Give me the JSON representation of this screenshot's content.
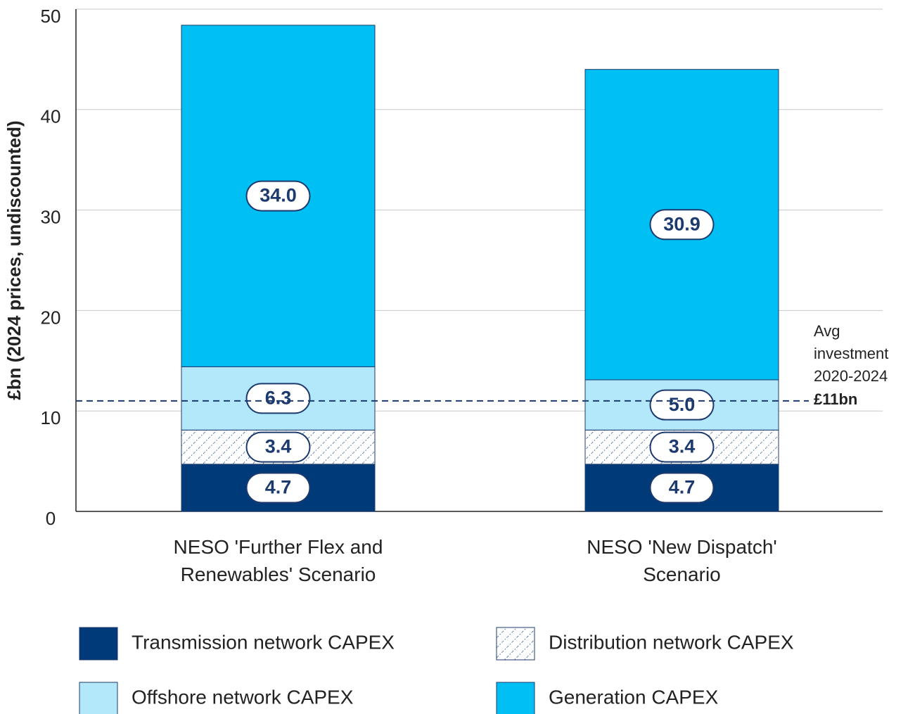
{
  "chart_data": {
    "type": "stacked_bar",
    "y_label": "£bn (2024 prices, undiscounted)",
    "categories": [
      "NESO 'Further Flex and Renewables' Scenario",
      "NESO 'New Dispatch' Scenario"
    ],
    "series": [
      {
        "name": "Transmission network CAPEX",
        "color": "#003a78",
        "values": [
          4.7,
          4.7
        ],
        "value_labels": [
          "4.7",
          "4.7"
        ]
      },
      {
        "name": "Distribution network CAPEX",
        "color": "hatch",
        "values": [
          3.4,
          3.4
        ],
        "value_labels": [
          "3.4",
          "3.4"
        ]
      },
      {
        "name": "Offshore network CAPEX",
        "color": "#b3e8fb",
        "values": [
          6.3,
          5.0
        ],
        "value_labels": [
          "6.3",
          "5.0"
        ]
      },
      {
        "name": "Generation CAPEX",
        "color": "#00bff3",
        "values": [
          34.0,
          30.9
        ],
        "value_labels": [
          "34.0",
          "30.9"
        ]
      }
    ],
    "ylim": [
      0,
      50
    ],
    "yticks": [
      0,
      10,
      20,
      30,
      40,
      50
    ],
    "grid": true,
    "annotation": {
      "value": 11,
      "lines": [
        "Avg",
        "investment",
        "2020-2024"
      ],
      "label": "£11bn"
    }
  }
}
